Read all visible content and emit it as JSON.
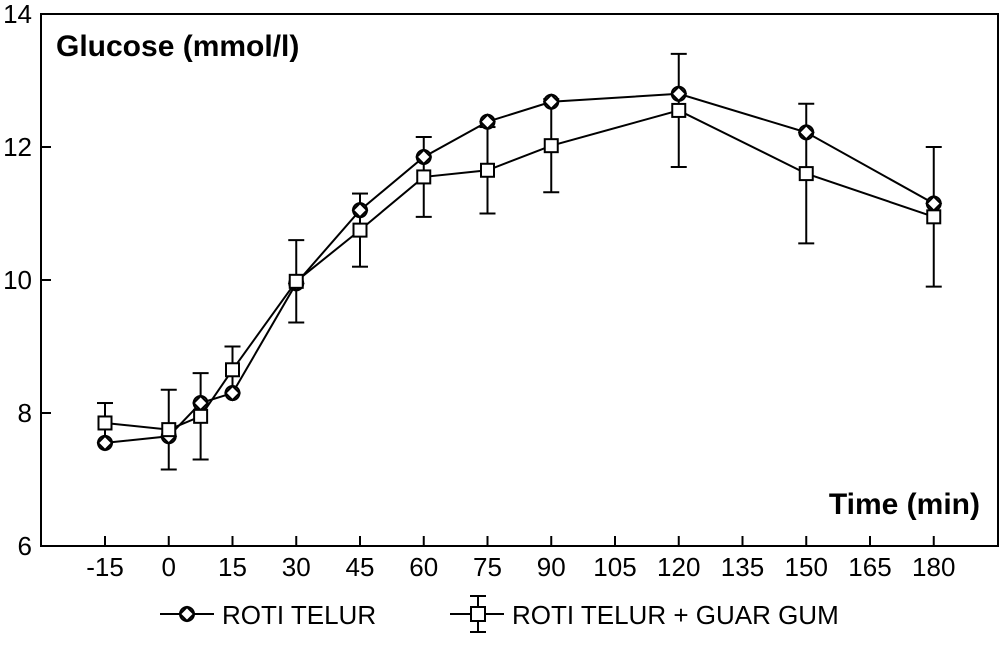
{
  "chart_data": {
    "type": "line",
    "ylabel": "Glucose (mmol/l)",
    "xlabel": "Time (min)",
    "ylim": [
      6,
      14
    ],
    "yticks": [
      6,
      8,
      10,
      12,
      14
    ],
    "xticks": [
      -15,
      0,
      15,
      30,
      45,
      60,
      75,
      90,
      105,
      120,
      135,
      150,
      165,
      180
    ],
    "x": [
      -15,
      0,
      7.5,
      15,
      30,
      45,
      60,
      75,
      90,
      120,
      150,
      180
    ],
    "grid": false,
    "legend_position": "bottom",
    "series": [
      {
        "name": "ROTI TELUR",
        "marker": "diamond-circle",
        "values": [
          7.55,
          7.65,
          8.15,
          8.3,
          9.95,
          11.05,
          11.85,
          12.38,
          12.68,
          12.8,
          12.22,
          11.15
        ]
      },
      {
        "name": "ROTI TELUR + GUAR GUM",
        "marker": "square",
        "values": [
          7.85,
          7.75,
          7.95,
          8.65,
          9.98,
          10.75,
          11.55,
          11.65,
          12.02,
          12.55,
          11.6,
          10.95
        ],
        "error": [
          0.3,
          0.6,
          0.65,
          0.35,
          0.62,
          0.55,
          0.6,
          0.65,
          0.7,
          0.85,
          1.05,
          1.05
        ]
      }
    ]
  }
}
